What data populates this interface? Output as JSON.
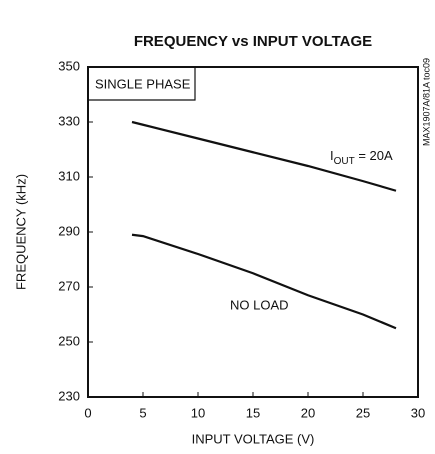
{
  "chart_data": {
    "type": "line",
    "title": "FREQUENCY vs INPUT VOLTAGE",
    "x_label": "INPUT VOLTAGE (V)",
    "y_label": "FREQUENCY (kHz)",
    "box_label": "SINGLE PHASE",
    "side_note": "MAX1907A/81A toc09",
    "x": [
      4,
      5,
      10,
      15,
      20,
      25,
      28
    ],
    "series": [
      {
        "label_parts": [
          "I",
          "OUT",
          " = 20A"
        ],
        "color": "#111111",
        "values": [
          330,
          329,
          324,
          319,
          314,
          308.5,
          305
        ]
      },
      {
        "name": "NO LOAD",
        "color": "#111111",
        "values": [
          289,
          288.5,
          282,
          275,
          267,
          260,
          255
        ]
      }
    ],
    "xlim": [
      0,
      30
    ],
    "xticks": [
      0,
      5,
      10,
      15,
      20,
      25,
      30
    ],
    "ylim": [
      230,
      350
    ],
    "yticks": [
      230,
      250,
      270,
      290,
      310,
      330,
      350
    ],
    "grid": false
  }
}
